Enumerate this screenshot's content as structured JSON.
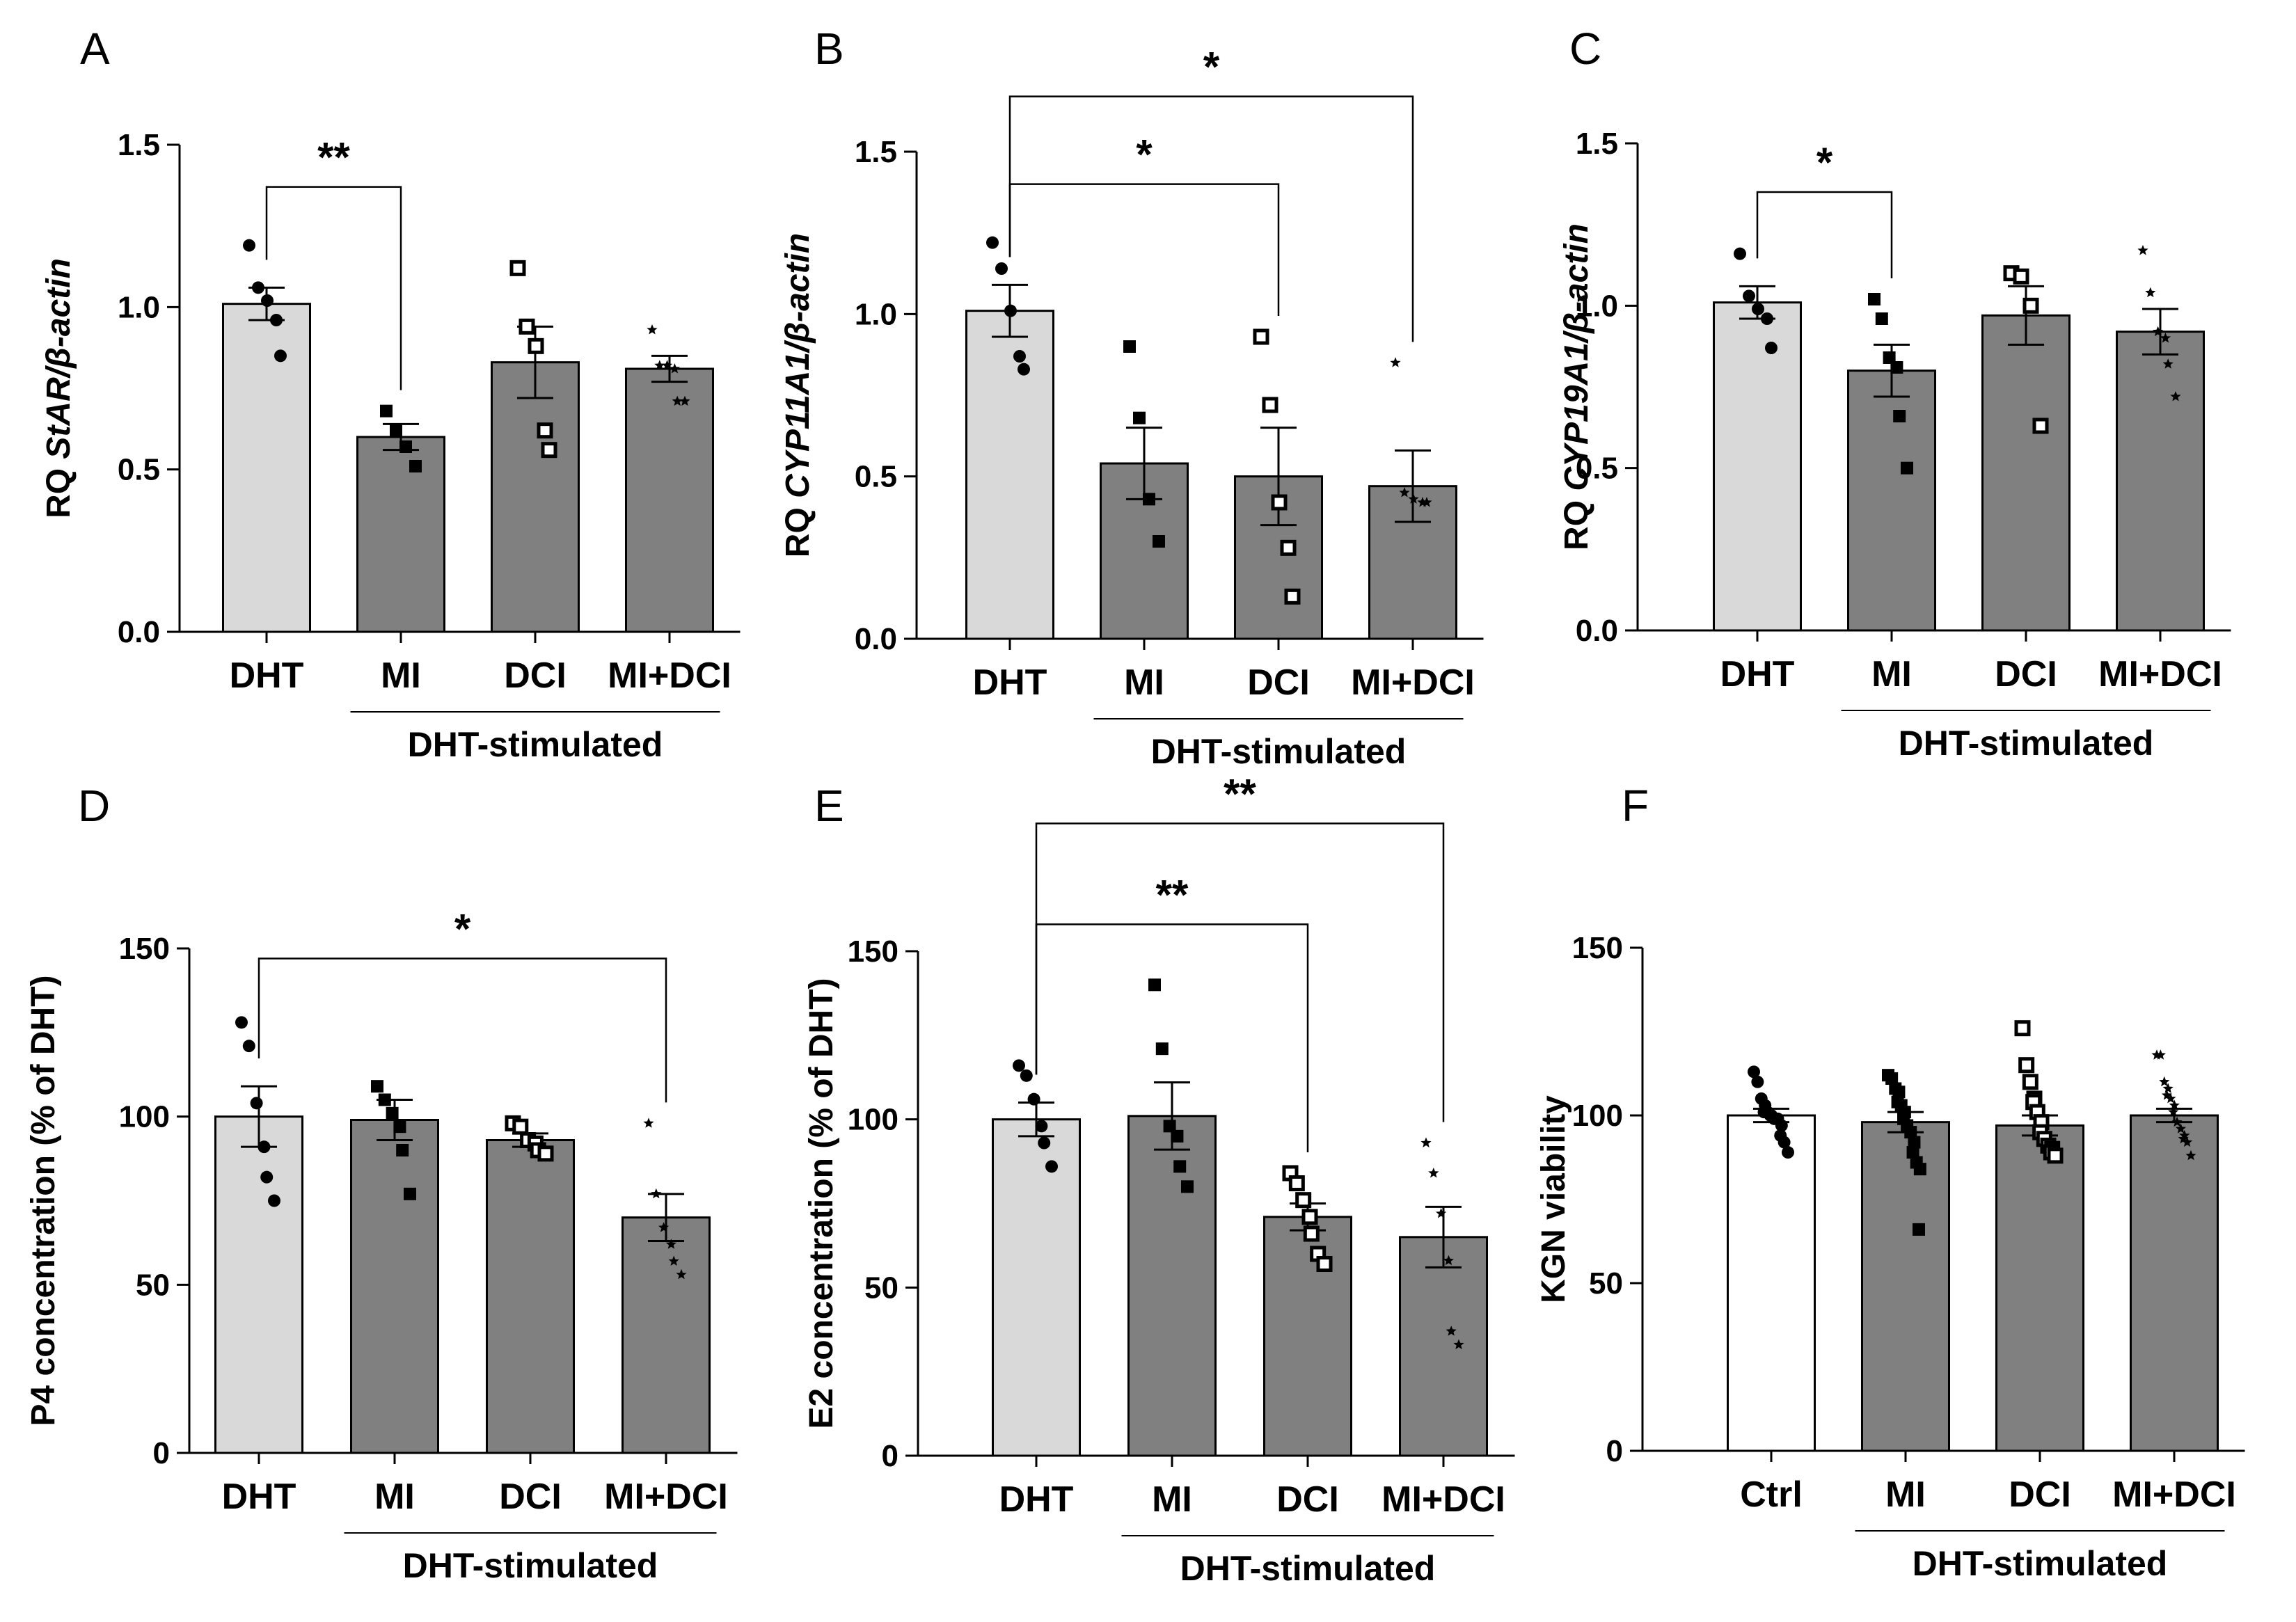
{
  "colors": {
    "axis": "#000000",
    "bar_dht": "#d9d9d9",
    "bar_treated": "#808080",
    "bar_ctrl": "#ffffff",
    "outline": "#000000"
  },
  "chart_data": [
    {
      "panel": "A",
      "type": "bar",
      "ylabel_pre": "RQ ",
      "ylabel_italic": "StAR/β-actin",
      "ylim": [
        0,
        1.5
      ],
      "yticks": [
        0,
        0.5,
        1.0,
        1.5
      ],
      "ytick_labels": [
        "0.0",
        "0.5",
        "1.0",
        "1.5"
      ],
      "categories": [
        "DHT",
        "MI",
        "DCI",
        "MI+DCI"
      ],
      "bar_colors": [
        "#d9d9d9",
        "#808080",
        "#808080",
        "#808080"
      ],
      "values": [
        1.01,
        0.6,
        0.83,
        0.81
      ],
      "sem": [
        0.05,
        0.04,
        0.11,
        0.04
      ],
      "points": [
        [
          1.19,
          1.06,
          1.02,
          0.96,
          0.85
        ],
        [
          0.68,
          0.62,
          0.57,
          0.51
        ],
        [
          1.12,
          0.94,
          0.88,
          0.62,
          0.56
        ],
        [
          0.93,
          0.82,
          0.82,
          0.81,
          0.71,
          0.71
        ]
      ],
      "marker_types": [
        "circle",
        "square",
        "open-square",
        "star"
      ],
      "group_label": "DHT-stimulated",
      "group_span": [
        1,
        3
      ],
      "significance": [
        {
          "from": 0,
          "to": 1,
          "label": "**",
          "y": 1.37
        }
      ]
    },
    {
      "panel": "B",
      "type": "bar",
      "ylabel_pre": "RQ ",
      "ylabel_italic": "CYP11A1/β-actin",
      "ylim": [
        0,
        1.5
      ],
      "yticks": [
        0,
        0.5,
        1.0,
        1.5
      ],
      "ytick_labels": [
        "0.0",
        "0.5",
        "1.0",
        "1.5"
      ],
      "categories": [
        "DHT",
        "MI",
        "DCI",
        "MI+DCI"
      ],
      "bar_colors": [
        "#d9d9d9",
        "#808080",
        "#808080",
        "#808080"
      ],
      "values": [
        1.01,
        0.54,
        0.5,
        0.47
      ],
      "sem": [
        0.08,
        0.11,
        0.15,
        0.11
      ],
      "points": [
        [
          1.22,
          1.14,
          1.01,
          0.87,
          0.83
        ],
        [
          0.9,
          0.68,
          0.43,
          0.3
        ],
        [
          0.93,
          0.72,
          0.42,
          0.28,
          0.13
        ],
        [
          0.85,
          0.45,
          0.43,
          0.42,
          0.42
        ]
      ],
      "marker_types": [
        "circle",
        "square",
        "open-square",
        "star"
      ],
      "group_label": "DHT-stimulated",
      "group_span": [
        1,
        3
      ],
      "significance": [
        {
          "from": 0,
          "to": 2,
          "label": "*",
          "y": 1.4
        },
        {
          "from": 0,
          "to": 3,
          "label": "*",
          "y": 1.67
        }
      ]
    },
    {
      "panel": "C",
      "type": "bar",
      "ylabel_pre": "RQ ",
      "ylabel_italic": "CYP19A1/β-actin",
      "ylim": [
        0,
        1.5
      ],
      "yticks": [
        0,
        0.5,
        1.0,
        1.5
      ],
      "ytick_labels": [
        "0.0",
        "0.5",
        "1.0",
        "1.5"
      ],
      "categories": [
        "DHT",
        "MI",
        "DCI",
        "MI+DCI"
      ],
      "bar_colors": [
        "#d9d9d9",
        "#808080",
        "#808080",
        "#808080"
      ],
      "values": [
        1.01,
        0.8,
        0.97,
        0.92
      ],
      "sem": [
        0.05,
        0.08,
        0.09,
        0.07
      ],
      "points": [
        [
          1.16,
          1.03,
          0.99,
          0.96,
          0.87
        ],
        [
          1.02,
          0.96,
          0.84,
          0.81,
          0.66,
          0.5
        ],
        [
          1.1,
          1.09,
          1.0,
          0.63
        ],
        [
          1.17,
          1.04,
          0.92,
          0.9,
          0.82,
          0.72
        ]
      ],
      "marker_types": [
        "circle",
        "square",
        "open-square",
        "star"
      ],
      "group_label": "DHT-stimulated",
      "group_span": [
        1,
        3
      ],
      "significance": [
        {
          "from": 0,
          "to": 1,
          "label": "*",
          "y": 1.35
        }
      ]
    },
    {
      "panel": "D",
      "type": "bar",
      "ylabel_pre": "P4 concentration (% of DHT)",
      "ylabel_italic": "",
      "ylim": [
        0,
        150
      ],
      "yticks": [
        0,
        50,
        100,
        150
      ],
      "ytick_labels": [
        "0",
        "50",
        "100",
        "150"
      ],
      "categories": [
        "DHT",
        "MI",
        "DCI",
        "MI+DCI"
      ],
      "bar_colors": [
        "#d9d9d9",
        "#808080",
        "#808080",
        "#808080"
      ],
      "values": [
        100,
        99,
        93,
        70
      ],
      "sem": [
        9,
        6,
        2,
        7
      ],
      "points": [
        [
          128,
          121,
          104,
          91,
          82,
          75
        ],
        [
          109,
          105,
          101,
          97,
          90,
          77
        ],
        [
          98,
          97,
          93,
          92,
          90,
          89
        ],
        [
          98,
          77,
          67,
          62,
          57,
          53
        ]
      ],
      "marker_types": [
        "circle",
        "square",
        "open-square",
        "star"
      ],
      "group_label": "DHT-stimulated",
      "group_span": [
        1,
        3
      ],
      "significance": [
        {
          "from": 0,
          "to": 3,
          "label": "*",
          "y": 147
        }
      ]
    },
    {
      "panel": "E",
      "type": "bar",
      "ylabel_pre": "E2 concentration (% of DHT)",
      "ylabel_italic": "",
      "ylim": [
        0,
        150
      ],
      "yticks": [
        0,
        50,
        100,
        150
      ],
      "ytick_labels": [
        "0",
        "50",
        "100",
        "150"
      ],
      "categories": [
        "DHT",
        "MI",
        "DCI",
        "MI+DCI"
      ],
      "bar_colors": [
        "#d9d9d9",
        "#808080",
        "#808080",
        "#808080"
      ],
      "values": [
        100,
        101,
        71,
        65
      ],
      "sem": [
        5,
        10,
        4,
        9
      ],
      "points": [
        [
          116,
          113,
          106,
          98,
          93,
          86
        ],
        [
          140,
          121,
          98,
          95,
          86,
          80
        ],
        [
          84,
          81,
          76,
          71,
          66,
          60,
          57
        ],
        [
          93,
          84,
          72,
          58,
          37,
          33
        ]
      ],
      "marker_types": [
        "circle",
        "square",
        "open-square",
        "star"
      ],
      "group_label": "DHT-stimulated",
      "group_span": [
        1,
        3
      ],
      "significance": [
        {
          "from": 0,
          "to": 2,
          "label": "**",
          "y": 158
        },
        {
          "from": 0,
          "to": 3,
          "label": "**",
          "y": 188
        }
      ]
    },
    {
      "panel": "F",
      "type": "bar",
      "ylabel_pre": "KGN viability",
      "ylabel_italic": "",
      "ylim": [
        0,
        150
      ],
      "yticks": [
        0,
        50,
        100,
        150
      ],
      "ytick_labels": [
        "0",
        "50",
        "100",
        "150"
      ],
      "categories": [
        "Ctrl",
        "MI",
        "DCI",
        "MI+DCI"
      ],
      "bar_colors": [
        "#ffffff",
        "#808080",
        "#808080",
        "#808080"
      ],
      "values": [
        100,
        98,
        97,
        100
      ],
      "sem": [
        2,
        3,
        3,
        2
      ],
      "points": [
        [
          113,
          110,
          105,
          103,
          101,
          101,
          100,
          100,
          99,
          99,
          97,
          94,
          92,
          89
        ],
        [
          112,
          111,
          108,
          107,
          104,
          103,
          101,
          99,
          97,
          95,
          92,
          89,
          86,
          84,
          66
        ],
        [
          126,
          115,
          110,
          105,
          104,
          101,
          98,
          95,
          93,
          91,
          90,
          89,
          88
        ],
        [
          118,
          118,
          110,
          108,
          106,
          105,
          103,
          101,
          98,
          96,
          94,
          93,
          92,
          88
        ]
      ],
      "marker_types": [
        "circle",
        "square",
        "open-square",
        "star"
      ],
      "group_label": "DHT-stimulated",
      "group_span": [
        1,
        3
      ],
      "significance": []
    }
  ]
}
